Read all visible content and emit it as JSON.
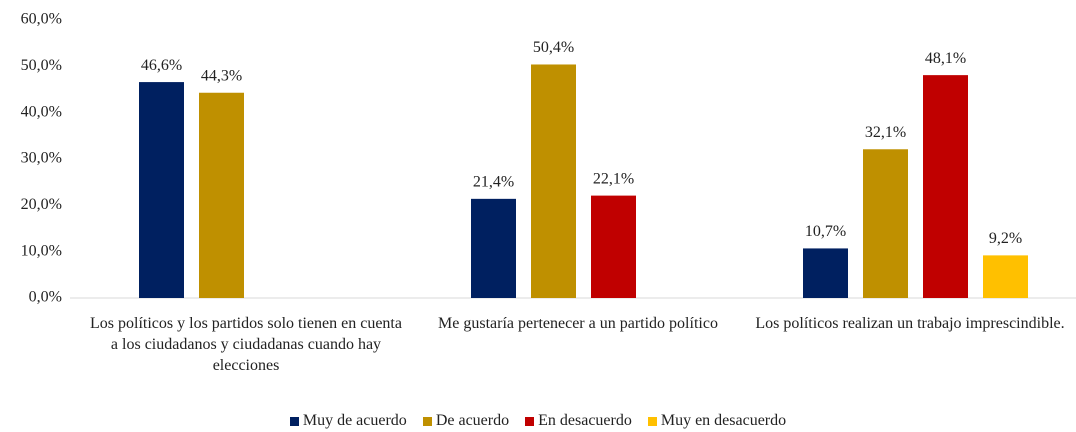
{
  "chart_data": {
    "type": "bar",
    "categories": [
      "Los políticos y los partidos solo tienen en cuenta a los ciudadanos y ciudadanas cuando hay elecciones",
      "Me gustaría pertenecer a un partido político",
      "Los políticos realizan un trabajo imprescindible."
    ],
    "series": [
      {
        "name": "Muy de acuerdo",
        "color": "#002060",
        "values": [
          46.6,
          21.4,
          10.7
        ],
        "value_labels": [
          "46,6%",
          "21,4%",
          "10,7%"
        ]
      },
      {
        "name": "De acuerdo",
        "color": "#bf9000",
        "values": [
          44.3,
          50.4,
          32.1
        ],
        "value_labels": [
          "44,3%",
          "50,4%",
          "32,1%"
        ]
      },
      {
        "name": "En desacuerdo",
        "color": "#c00000",
        "values": [
          null,
          22.1,
          48.1
        ],
        "value_labels": [
          null,
          "22,1%",
          "48,1%"
        ]
      },
      {
        "name": "Muy en desacuerdo",
        "color": "#ffc000",
        "values": [
          null,
          null,
          9.2
        ],
        "value_labels": [
          null,
          null,
          "9,2%"
        ]
      }
    ],
    "ylim": [
      0,
      60
    ],
    "yticks": [
      {
        "value": 0,
        "label": "0,0%"
      },
      {
        "value": 10,
        "label": "10,0%"
      },
      {
        "value": 20,
        "label": "20,0%"
      },
      {
        "value": 30,
        "label": "30,0%"
      },
      {
        "value": 40,
        "label": "40,0%"
      },
      {
        "value": 50,
        "label": "50,0%"
      },
      {
        "value": 60,
        "label": "60,0%"
      }
    ],
    "grid": false,
    "legend": "bottom"
  }
}
